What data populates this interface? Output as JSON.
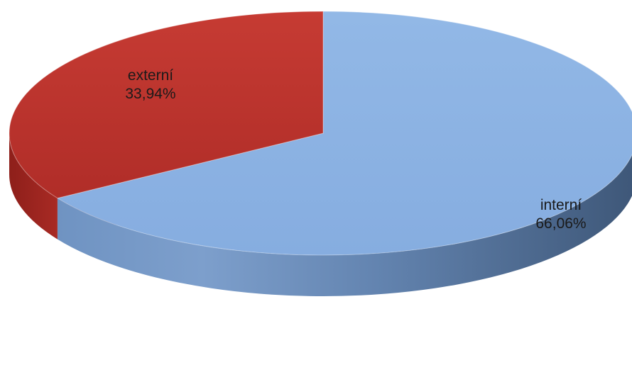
{
  "chart_data": {
    "type": "pie",
    "style": "3d",
    "slices": [
      {
        "label": "interní",
        "value": 66.06,
        "value_label": "66,06%",
        "color": "#8db3e2"
      },
      {
        "label": "externí",
        "value": 33.94,
        "value_label": "33,94%",
        "color": "#c0392f"
      }
    ],
    "start": "12 o'clock",
    "direction": "clockwise",
    "legend": "none",
    "title": ""
  }
}
